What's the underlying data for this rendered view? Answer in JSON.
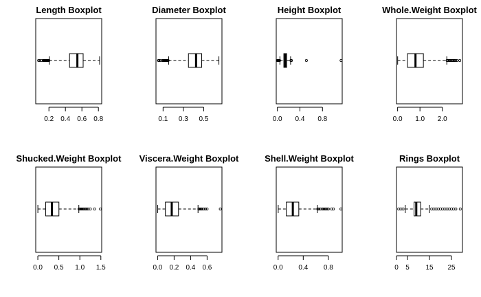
{
  "chart_data": [
    {
      "type": "boxplot",
      "title": "Length Boxplot",
      "xlim": [
        0.04,
        0.84
      ],
      "ticks": [
        0.2,
        0.4,
        0.6,
        0.8
      ],
      "tick_labels": [
        "0.2",
        "0.4",
        "0.6",
        "0.8"
      ],
      "whisker_low": 0.205,
      "q1": 0.45,
      "median": 0.545,
      "q3": 0.615,
      "whisker_high": 0.815,
      "outliers": [
        0.075,
        0.09,
        0.11,
        0.13,
        0.135,
        0.14,
        0.145,
        0.15,
        0.155,
        0.16,
        0.165,
        0.17,
        0.175,
        0.18,
        0.185,
        0.19,
        0.195,
        0.2
      ]
    },
    {
      "type": "boxplot",
      "title": "Diameter Boxplot",
      "xlim": [
        0.03,
        0.68
      ],
      "ticks": [
        0.1,
        0.3,
        0.5
      ],
      "tick_labels": [
        "0.1",
        "0.3",
        "0.5"
      ],
      "whisker_low": 0.155,
      "q1": 0.35,
      "median": 0.425,
      "q3": 0.48,
      "whisker_high": 0.65,
      "outliers": [
        0.055,
        0.06,
        0.07,
        0.09,
        0.1,
        0.105,
        0.11,
        0.115,
        0.12,
        0.125,
        0.13,
        0.135,
        0.14,
        0.145,
        0.15
      ]
    },
    {
      "type": "boxplot",
      "title": "Height Boxplot",
      "xlim": [
        -0.02,
        1.15
      ],
      "ticks": [
        0.0,
        0.4,
        0.8
      ],
      "tick_labels": [
        "0.0",
        "0.4",
        "0.8"
      ],
      "whisker_low": 0.045,
      "q1": 0.115,
      "median": 0.14,
      "q3": 0.165,
      "whisker_high": 0.235,
      "outliers": [
        0.0,
        0.01,
        0.015,
        0.02,
        0.025,
        0.03,
        0.035,
        0.04,
        0.24,
        0.25,
        0.515,
        1.13
      ]
    },
    {
      "type": "boxplot",
      "title": "Whole.Weight Boxplot",
      "xlim": [
        -0.05,
        2.9
      ],
      "ticks": [
        0.0,
        1.0,
        2.0
      ],
      "tick_labels": [
        "0.0",
        "1.0",
        "2.0"
      ],
      "whisker_low": 0.002,
      "q1": 0.442,
      "median": 0.8,
      "q3": 1.153,
      "whisker_high": 2.2,
      "outliers": [
        2.21,
        2.25,
        2.3,
        2.33,
        2.38,
        2.43,
        2.47,
        2.51,
        2.55,
        2.6,
        2.66,
        2.78
      ]
    },
    {
      "type": "boxplot",
      "title": "Shucked.Weight Boxplot",
      "xlim": [
        -0.05,
        1.52
      ],
      "ticks": [
        0.0,
        0.5,
        1.0,
        1.5
      ],
      "tick_labels": [
        "0.0",
        "0.5",
        "1.0",
        "1.5"
      ],
      "whisker_low": 0.001,
      "q1": 0.186,
      "median": 0.336,
      "q3": 0.502,
      "whisker_high": 0.976,
      "outliers": [
        0.98,
        1.0,
        1.02,
        1.04,
        1.06,
        1.08,
        1.1,
        1.13,
        1.15,
        1.17,
        1.2,
        1.25,
        1.35,
        1.49
      ]
    },
    {
      "type": "boxplot",
      "title": "Viscera.Weight Boxplot",
      "xlim": [
        -0.02,
        0.78
      ],
      "ticks": [
        0.0,
        0.2,
        0.4,
        0.6
      ],
      "tick_labels": [
        "0.0",
        "0.2",
        "0.4",
        "0.6"
      ],
      "whisker_low": 0.001,
      "q1": 0.094,
      "median": 0.171,
      "q3": 0.253,
      "whisker_high": 0.49,
      "outliers": [
        0.5,
        0.51,
        0.52,
        0.53,
        0.54,
        0.56,
        0.58,
        0.6,
        0.76
      ]
    },
    {
      "type": "boxplot",
      "title": "Shell.Weight Boxplot",
      "xlim": [
        -0.03,
        1.02
      ],
      "ticks": [
        0.0,
        0.4,
        0.8
      ],
      "tick_labels": [
        "0.0",
        "0.4",
        "0.8"
      ],
      "whisker_low": 0.0015,
      "q1": 0.13,
      "median": 0.234,
      "q3": 0.329,
      "whisker_high": 0.625,
      "outliers": [
        0.63,
        0.65,
        0.67,
        0.7,
        0.72,
        0.74,
        0.76,
        0.78,
        0.8,
        0.85,
        0.88,
        1.0
      ]
    },
    {
      "type": "boxplot",
      "title": "Rings Boxplot",
      "xlim": [
        0,
        30
      ],
      "ticks": [
        0,
        5,
        15,
        25
      ],
      "tick_labels": [
        "0",
        "5",
        "15",
        "25"
      ],
      "whisker_low": 4,
      "q1": 8,
      "median": 9,
      "q3": 11,
      "whisker_high": 15,
      "outliers": [
        1,
        2,
        3,
        16,
        17,
        18,
        19,
        20,
        21,
        22,
        23,
        24,
        25,
        26,
        27,
        29
      ]
    }
  ]
}
